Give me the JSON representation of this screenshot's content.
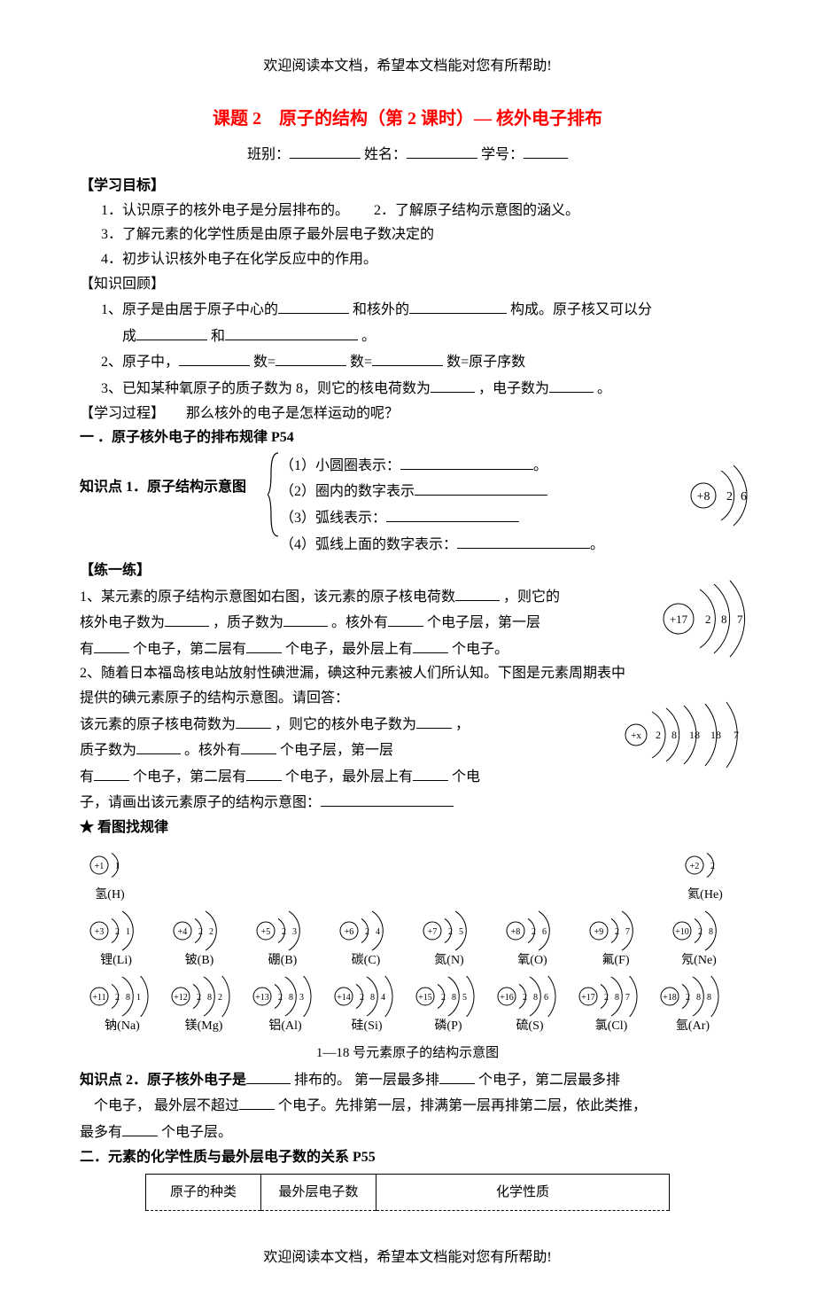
{
  "header_note": "欢迎阅读本文档，希望本文档能对您有所帮助!",
  "footer_note": "欢迎阅读本文档，希望本文档能对您有所帮助!",
  "title": "课题 2　原子的结构（第 2 课时）— 核外电子排布",
  "form": {
    "class_label": "班别：",
    "name_label": "姓名：",
    "id_label": "学号："
  },
  "goals_head": "【学习目标】",
  "goals": {
    "g1": "1．认识原子的核外电子是分层排布的。",
    "g2": "2．了解原子结构示意图的涵义。",
    "g3": "3．了解元素的化学性质是由原子最外层电子数决定的",
    "g4": "4．初步认识核外电子在化学反应中的作用。"
  },
  "review_head": "【知识回顾】",
  "review": {
    "r1a": "1、原子是由居于原子中心的",
    "r1b": "和核外的",
    "r1c": "构成。原子核又可以分",
    "r1d": "成",
    "r1e": " 和",
    "r1f": "。",
    "r2a": "2、原子中，",
    "r2b": "数=",
    "r2c": "数=",
    "r2d": "数=原子序数",
    "r3a": "3、已知某种氧原子的质子数为 8，则它的核电荷数为",
    "r3b": "，电子数为",
    "r3c": "。"
  },
  "process_head": "【学习过程】　　那么核外的电子是怎样运动的呢？",
  "section1_head": "一 ．原子核外电子的排布规律 P54",
  "kp1_label": "知识点 1．原子结构示意图",
  "kp1": {
    "l1a": "（1）小圆圈表示：",
    "l1b": "。",
    "l2a": "（2）圈内的数字表示",
    "l3a": "（3）弧线表示：",
    "l4a": "（4）弧线上面的数字表示：",
    "l4b": "。"
  },
  "atom_o": {
    "nucleus": "+8",
    "shells": [
      "2",
      "6"
    ],
    "stroke": "#000000"
  },
  "practice_head": "【练一练】",
  "q1": {
    "a": "1、某元素的原子结构示意图如右图，该元素的原子核电荷数",
    "b": "，则它的",
    "c": "核外电子数为",
    "d": "，质子数为",
    "e": "。核外有",
    "f": "个电子层，第一层",
    "g": "有",
    "h": "个电子，第二层有",
    "i": "个电子，最外层上有",
    "j": "个电子。"
  },
  "atom_cl": {
    "nucleus": "+17",
    "shells": [
      "2",
      "8",
      "7"
    ],
    "stroke": "#000000"
  },
  "q2": {
    "a": "2、随着日本福岛核电站放射性碘泄漏，碘这种元素被人们所认知。下图是元素周期表中",
    "b": "提供的碘元素原子的结构示意图。请回答：",
    "c": "该元素的原子核电荷数为",
    "d": "，则它的核外电子数为",
    "e": "，",
    "f": "质子数为",
    "g": "。核外有",
    "h": "个电子层，第一层",
    "i": "有",
    "j": "个电子，第二层有",
    "k": "个电子，最外层上有",
    "l": "个电",
    "m": "子，请画出该元素原子的结构示意图：",
    "n": ""
  },
  "atom_i": {
    "nucleus": "+x",
    "shells": [
      "2",
      "8",
      "18",
      "18",
      "7"
    ],
    "stroke": "#000000"
  },
  "star_head": "★ 看图找规律",
  "periodic": {
    "row1": [
      {
        "n": "+1",
        "s": [
          "1"
        ],
        "label": "氢(H)"
      },
      {
        "n": "+2",
        "s": [
          "2"
        ],
        "label": "氦(He)"
      }
    ],
    "row2": [
      {
        "n": "+3",
        "s": [
          "2",
          "1"
        ],
        "label": "锂(Li)"
      },
      {
        "n": "+4",
        "s": [
          "2",
          "2"
        ],
        "label": "铍(B)"
      },
      {
        "n": "+5",
        "s": [
          "2",
          "3"
        ],
        "label": "硼(B)"
      },
      {
        "n": "+6",
        "s": [
          "2",
          "4"
        ],
        "label": "碳(C)"
      },
      {
        "n": "+7",
        "s": [
          "2",
          "5"
        ],
        "label": "氮(N)"
      },
      {
        "n": "+8",
        "s": [
          "2",
          "6"
        ],
        "label": "氧(O)"
      },
      {
        "n": "+9",
        "s": [
          "2",
          "7"
        ],
        "label": "氟(F)"
      },
      {
        "n": "+10",
        "s": [
          "2",
          "8"
        ],
        "label": "氖(Ne)"
      }
    ],
    "row3": [
      {
        "n": "+11",
        "s": [
          "2",
          "8",
          "1"
        ],
        "label": "钠(Na)"
      },
      {
        "n": "+12",
        "s": [
          "2",
          "8",
          "2"
        ],
        "label": "镁(Mg)"
      },
      {
        "n": "+13",
        "s": [
          "2",
          "8",
          "3"
        ],
        "label": "铝(Al)"
      },
      {
        "n": "+14",
        "s": [
          "2",
          "8",
          "4"
        ],
        "label": "硅(Si)"
      },
      {
        "n": "+15",
        "s": [
          "2",
          "8",
          "5"
        ],
        "label": "磷(P)"
      },
      {
        "n": "+16",
        "s": [
          "2",
          "8",
          "6"
        ],
        "label": "硫(S)"
      },
      {
        "n": "+17",
        "s": [
          "2",
          "8",
          "7"
        ],
        "label": "氯(Cl)"
      },
      {
        "n": "+18",
        "s": [
          "2",
          "8",
          "8"
        ],
        "label": "氩(Ar)"
      }
    ],
    "caption": "1—18 号元素原子的结构示意图"
  },
  "kp2": {
    "a": "知识点 2．原子核外电子是",
    "b": "排布的。 第一层最多排",
    "c": "个电子，第二层最多排",
    "d": "个电子， 最外层不超过",
    "e": "个电子。先排第一层，排满第一层再排第二层，依此类推，",
    "f": "最多有",
    "g": "个电子层。"
  },
  "section2_head": "二．元素的化学性质与最外层电子数的关系 P55",
  "table": {
    "h1": "原子的种类",
    "h2": "最外层电子数",
    "h3": "化学性质"
  },
  "colors": {
    "title": "#ff0000",
    "text": "#000000",
    "bg": "#ffffff"
  }
}
